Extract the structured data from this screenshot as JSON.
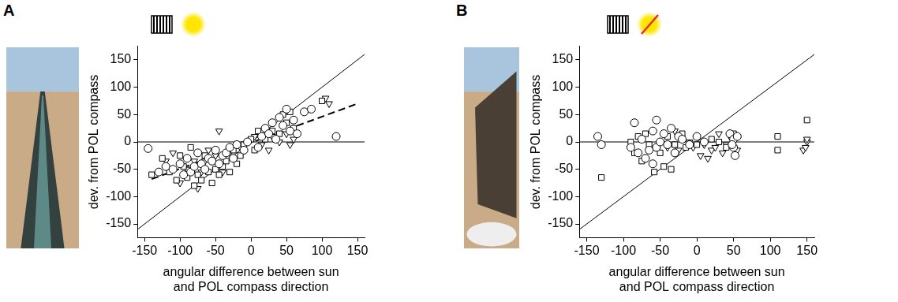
{
  "chart_data": [
    {
      "panel_label": "A",
      "type": "scatter",
      "x_label": "angular difference between sun and POL compass direction",
      "y_label": "dev. from POL compass",
      "xlim": [
        -160,
        160
      ],
      "ylim": [
        -175,
        175
      ],
      "xticks": [
        -150,
        -100,
        -50,
        0,
        50,
        100,
        150
      ],
      "yticks": [
        -150,
        -100,
        -50,
        0,
        50,
        100,
        150
      ],
      "grid": false,
      "series": [
        {
          "marker": "circle",
          "color": "#000000",
          "x": [
            -145,
            -130,
            -120,
            -110,
            -100,
            -95,
            -90,
            -85,
            -80,
            -75,
            -70,
            -65,
            -60,
            -55,
            -50,
            -45,
            -40,
            -35,
            -30,
            -25,
            -20,
            -10,
            -5,
            10,
            15,
            20,
            25,
            30,
            35,
            40,
            45,
            50,
            55,
            60,
            65,
            75,
            85,
            120
          ],
          "values": [
            -12,
            -55,
            -45,
            -50,
            -40,
            -60,
            -30,
            -55,
            -45,
            -20,
            -40,
            -50,
            -30,
            -35,
            -15,
            -40,
            -25,
            -20,
            -10,
            -30,
            -5,
            -15,
            0,
            -10,
            10,
            25,
            15,
            35,
            5,
            45,
            30,
            60,
            20,
            40,
            15,
            55,
            60,
            10
          ]
        },
        {
          "marker": "square",
          "color": "#000000",
          "x": [
            -140,
            -125,
            -115,
            -105,
            -100,
            -95,
            -90,
            -85,
            -80,
            -75,
            -70,
            -65,
            -60,
            -55,
            -50,
            -45,
            -40,
            -35,
            -30,
            -25,
            -20,
            -15,
            -10,
            0,
            5,
            10,
            20,
            30,
            40,
            45,
            50,
            55,
            60,
            100
          ],
          "values": [
            -60,
            -30,
            -55,
            -70,
            -25,
            -45,
            -65,
            -10,
            -80,
            -60,
            -70,
            -25,
            -55,
            -75,
            -50,
            -60,
            -45,
            -35,
            -55,
            -15,
            -40,
            -25,
            -5,
            5,
            -15,
            20,
            5,
            20,
            15,
            50,
            35,
            55,
            25,
            75
          ]
        },
        {
          "marker": "triangle_down",
          "color": "#000000",
          "x": [
            -120,
            -110,
            -100,
            -90,
            -80,
            -75,
            -70,
            -65,
            -60,
            -50,
            -45,
            -40,
            -30,
            -15,
            5,
            15,
            25,
            30,
            40,
            50,
            55,
            60,
            105,
            110
          ],
          "values": [
            -35,
            -20,
            -75,
            -50,
            -35,
            -85,
            -55,
            -35,
            -15,
            -25,
            20,
            -55,
            -20,
            -10,
            10,
            -5,
            -15,
            10,
            0,
            15,
            -5,
            5,
            80,
            70
          ]
        }
      ],
      "lines": [
        {
          "color": "#000000",
          "line_style": "solid",
          "x": [
            -160,
            160
          ],
          "values": [
            0,
            0
          ]
        },
        {
          "color": "#000000",
          "line_style": "solid",
          "x": [
            -160,
            160
          ],
          "values": [
            -160,
            160
          ]
        },
        {
          "color": "#000000",
          "line_style": "dashed",
          "x": [
            -140,
            150
          ],
          "values": [
            -68,
            70
          ]
        }
      ]
    },
    {
      "panel_label": "B",
      "type": "scatter",
      "x_label": "angular difference between sun and POL compass direction",
      "y_label": "dev. from POL compass",
      "xlim": [
        -160,
        160
      ],
      "ylim": [
        -175,
        175
      ],
      "xticks": [
        -150,
        -100,
        -50,
        0,
        50,
        100,
        150
      ],
      "yticks": [
        -150,
        -100,
        -50,
        0,
        50,
        100,
        150
      ],
      "grid": false,
      "series": [
        {
          "marker": "circle",
          "color": "#000000",
          "x": [
            -135,
            -130,
            -90,
            -85,
            -80,
            -75,
            -70,
            -65,
            -60,
            -60,
            -55,
            -55,
            -50,
            -45,
            -40,
            -35,
            -30,
            -25,
            -20,
            -10,
            0,
            10,
            45,
            50,
            50,
            52,
            55,
            48
          ],
          "values": [
            10,
            -5,
            -10,
            35,
            -20,
            5,
            -30,
            -15,
            20,
            -40,
            40,
            -10,
            0,
            15,
            -5,
            25,
            -20,
            10,
            5,
            -5,
            10,
            0,
            15,
            -10,
            5,
            -25,
            10,
            -5
          ]
        },
        {
          "marker": "square",
          "color": "#000000",
          "x": [
            -130,
            -90,
            -85,
            -80,
            -75,
            -70,
            -65,
            -58,
            -50,
            -45,
            -40,
            -35,
            -30,
            -20,
            -15,
            0,
            20,
            30,
            40,
            50,
            110,
            110,
            150
          ],
          "values": [
            -65,
            0,
            -20,
            10,
            -35,
            15,
            -5,
            -55,
            -20,
            -45,
            10,
            -50,
            -5,
            15,
            -10,
            -5,
            5,
            0,
            -10,
            15,
            10,
            -15,
            40
          ]
        },
        {
          "marker": "triangle_down",
          "color": "#000000",
          "x": [
            -40,
            -30,
            -25,
            -10,
            -5,
            5,
            10,
            15,
            20,
            25,
            30,
            35,
            40,
            45,
            55,
            145,
            150,
            150,
            148
          ],
          "values": [
            -10,
            20,
            -15,
            0,
            -10,
            -25,
            -5,
            -30,
            -15,
            -10,
            15,
            -20,
            -5,
            10,
            -15,
            -15,
            0,
            5,
            -10
          ]
        }
      ],
      "lines": [
        {
          "color": "#000000",
          "line_style": "solid",
          "x": [
            -160,
            160
          ],
          "values": [
            0,
            0
          ]
        },
        {
          "color": "#000000",
          "line_style": "solid",
          "x": [
            -160,
            160
          ],
          "values": [
            -160,
            160
          ]
        }
      ]
    }
  ]
}
